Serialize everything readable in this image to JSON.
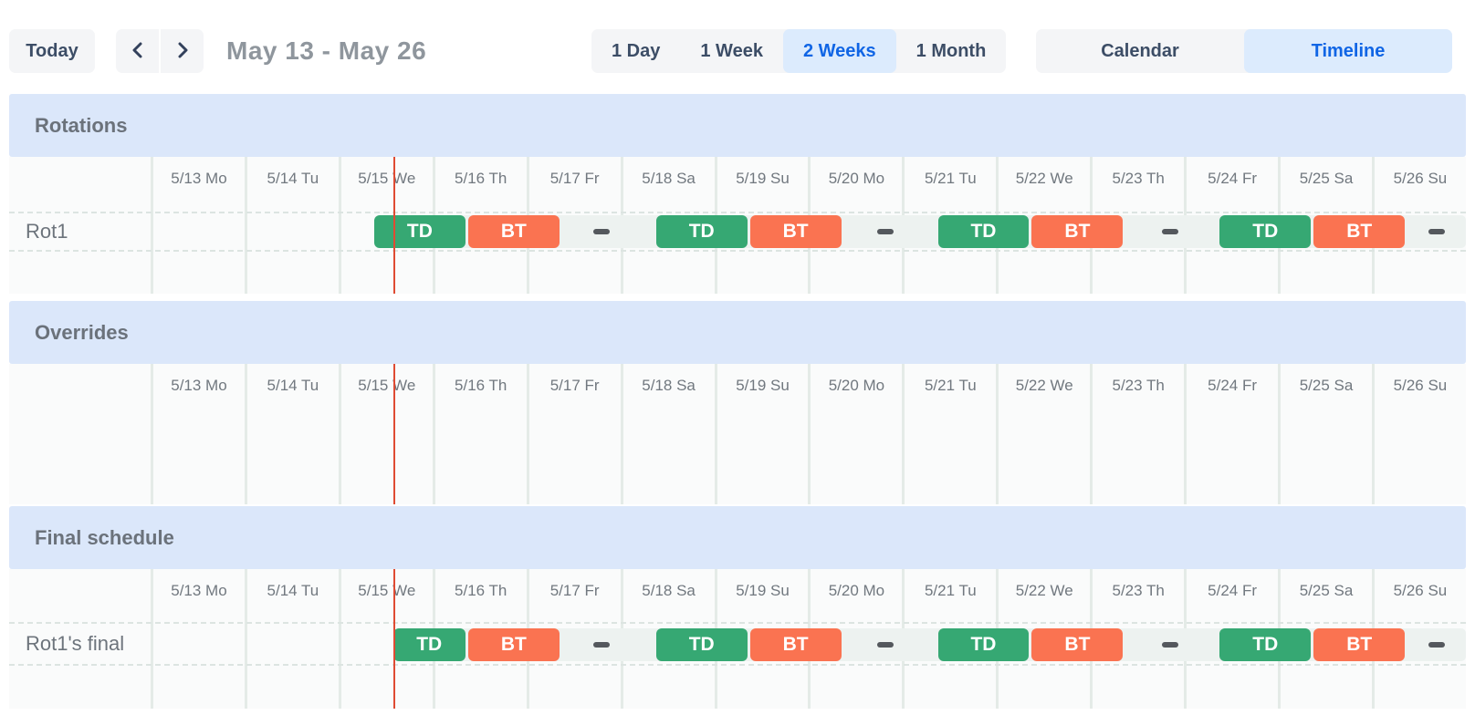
{
  "toolbar": {
    "today_label": "Today",
    "nav": {
      "prev_icon": "chevron-left-icon",
      "next_icon": "chevron-right-icon"
    },
    "date_range_title": "May 13 - May 26",
    "view_options": [
      {
        "label": "1 Day",
        "active": false
      },
      {
        "label": "1 Week",
        "active": false
      },
      {
        "label": "2 Weeks",
        "active": true
      },
      {
        "label": "1 Month",
        "active": false
      }
    ],
    "mode_options": [
      {
        "label": "Calendar",
        "active": false
      },
      {
        "label": "Timeline",
        "active": true
      }
    ]
  },
  "timeline": {
    "days_visible": 14,
    "day_headers": [
      "5/13 Mo",
      "5/14 Tu",
      "5/15 We",
      "5/16 Th",
      "5/17 Fr",
      "5/18 Sa",
      "5/19 Su",
      "5/20 Mo",
      "5/21 Tu",
      "5/22 We",
      "5/23 Th",
      "5/24 Fr",
      "5/25 Sa",
      "5/26 Su"
    ],
    "now_marker_day": 2.58,
    "colors": {
      "shift_td": "#36a873",
      "shift_bt": "#fa7351",
      "lane": "#edf2f0",
      "gap_dash": "#54585d",
      "now_line": "#df4b33",
      "section_band": "#dbe7fa",
      "active_blue_bg": "#dcebfd",
      "active_blue_text": "#1065e5"
    },
    "sections": [
      {
        "title": "Rotations",
        "rows": [
          {
            "label": "Rot1",
            "lane_start_day": 2.38,
            "shifts": [
              {
                "label": "TD",
                "color": "shift_td",
                "start_day": 2.38,
                "end_day": 3.38
              },
              {
                "label": "BT",
                "color": "shift_bt",
                "start_day": 3.38,
                "end_day": 4.38
              },
              {
                "label": "TD",
                "color": "shift_td",
                "start_day": 5.38,
                "end_day": 6.38
              },
              {
                "label": "BT",
                "color": "shift_bt",
                "start_day": 6.38,
                "end_day": 7.38
              },
              {
                "label": "TD",
                "color": "shift_td",
                "start_day": 8.38,
                "end_day": 9.38
              },
              {
                "label": "BT",
                "color": "shift_bt",
                "start_day": 9.38,
                "end_day": 10.38
              },
              {
                "label": "TD",
                "color": "shift_td",
                "start_day": 11.38,
                "end_day": 12.38
              },
              {
                "label": "BT",
                "color": "shift_bt",
                "start_day": 12.38,
                "end_day": 13.38
              }
            ],
            "gap_dashes_day": [
              4.8,
              7.82,
              10.85,
              13.69
            ]
          }
        ]
      },
      {
        "title": "Overrides",
        "rows": []
      },
      {
        "title": "Final schedule",
        "rows": [
          {
            "label": "Rot1's final",
            "lane_start_day": 2.58,
            "shifts": [
              {
                "label": "TD",
                "color": "shift_td",
                "start_day": 2.58,
                "end_day": 3.38
              },
              {
                "label": "BT",
                "color": "shift_bt",
                "start_day": 3.38,
                "end_day": 4.38
              },
              {
                "label": "TD",
                "color": "shift_td",
                "start_day": 5.38,
                "end_day": 6.38
              },
              {
                "label": "BT",
                "color": "shift_bt",
                "start_day": 6.38,
                "end_day": 7.38
              },
              {
                "label": "TD",
                "color": "shift_td",
                "start_day": 8.38,
                "end_day": 9.38
              },
              {
                "label": "BT",
                "color": "shift_bt",
                "start_day": 9.38,
                "end_day": 10.38
              },
              {
                "label": "TD",
                "color": "shift_td",
                "start_day": 11.38,
                "end_day": 12.38
              },
              {
                "label": "BT",
                "color": "shift_bt",
                "start_day": 12.38,
                "end_day": 13.38
              }
            ],
            "gap_dashes_day": [
              4.8,
              7.82,
              10.85,
              13.69
            ]
          }
        ]
      }
    ]
  }
}
